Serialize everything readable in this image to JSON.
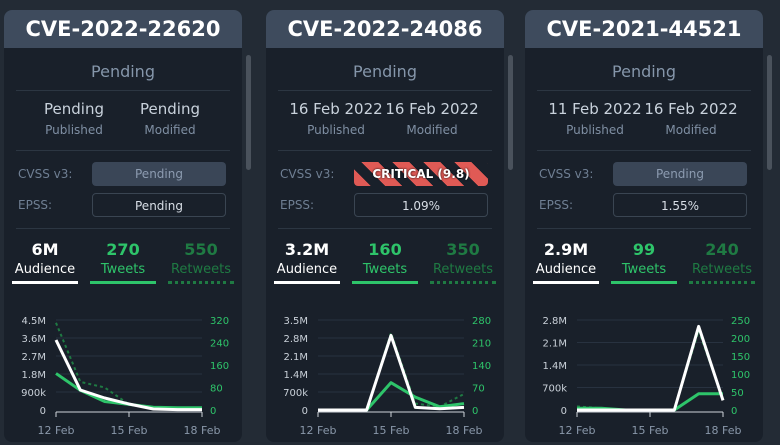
{
  "cards": [
    {
      "title": "CVE-2022-22620",
      "status": "Pending",
      "published": "Pending",
      "modified": "Pending",
      "published_label": "Published",
      "modified_label": "Modified",
      "cvss_label": "CVSS v3:",
      "cvss": "Pending",
      "cvss_severity": "pending",
      "epss_label": "EPSS:",
      "epss": "Pending",
      "audience": "6M",
      "tweets": "270",
      "retweets": "550",
      "audience_label": "Audience",
      "tweets_label": "Tweets",
      "retweets_label": "Retweets"
    },
    {
      "title": "CVE-2022-24086",
      "status": "Pending",
      "published": "16 Feb 2022",
      "modified": "16 Feb 2022",
      "published_label": "Published",
      "modified_label": "Modified",
      "cvss_label": "CVSS v3:",
      "cvss": "CRITICAL (9.8)",
      "cvss_severity": "critical",
      "epss_label": "EPSS:",
      "epss": "1.09%",
      "audience": "3.2M",
      "tweets": "160",
      "retweets": "350",
      "audience_label": "Audience",
      "tweets_label": "Tweets",
      "retweets_label": "Retweets"
    },
    {
      "title": "CVE-2021-44521",
      "status": "Pending",
      "published": "11 Feb 2022",
      "modified": "16 Feb 2022",
      "published_label": "Published",
      "modified_label": "Modified",
      "cvss_label": "CVSS v3:",
      "cvss": "Pending",
      "cvss_severity": "pending",
      "epss_label": "EPSS:",
      "epss": "1.55%",
      "audience": "2.9M",
      "tweets": "99",
      "retweets": "240",
      "audience_label": "Audience",
      "tweets_label": "Tweets",
      "retweets_label": "Retweets"
    }
  ],
  "colors": {
    "audience": "#ffffff",
    "tweets": "#2ec46a",
    "retweets": "#1f7a43"
  },
  "chart_data": [
    {
      "type": "line",
      "x": [
        "12 Feb",
        "13 Feb",
        "14 Feb",
        "15 Feb",
        "16 Feb",
        "17 Feb",
        "18 Feb"
      ],
      "xticks": [
        "12 Feb",
        "15 Feb",
        "18 Feb"
      ],
      "yleft": {
        "max": 4500000,
        "ticks": [
          "0",
          "900k",
          "1.8M",
          "2.7M",
          "3.6M",
          "4.5M"
        ]
      },
      "yright": {
        "max": 320,
        "ticks": [
          "0",
          "80",
          "160",
          "240",
          "320"
        ]
      },
      "series": [
        {
          "name": "Audience",
          "axis": "left",
          "values": [
            3500000,
            1000000,
            600000,
            300000,
            50000,
            20000,
            20000
          ]
        },
        {
          "name": "Tweets",
          "axis": "right",
          "values": [
            130,
            70,
            30,
            20,
            10,
            8,
            8
          ]
        },
        {
          "name": "Retweets",
          "axis": "right",
          "values": [
            310,
            100,
            80,
            20,
            5,
            5,
            5
          ]
        }
      ]
    },
    {
      "type": "line",
      "x": [
        "12 Feb",
        "13 Feb",
        "14 Feb",
        "15 Feb",
        "16 Feb",
        "17 Feb",
        "18 Feb"
      ],
      "xticks": [
        "12 Feb",
        "15 Feb",
        "18 Feb"
      ],
      "yleft": {
        "max": 3500000,
        "ticks": [
          "0",
          "700k",
          "1.4M",
          "2.1M",
          "2.8M",
          "3.5M"
        ]
      },
      "yright": {
        "max": 280,
        "ticks": [
          "0",
          "70",
          "140",
          "210",
          "280"
        ]
      },
      "series": [
        {
          "name": "Audience",
          "axis": "left",
          "values": [
            0,
            0,
            0,
            2900000,
            100000,
            50000,
            100000
          ]
        },
        {
          "name": "Tweets",
          "axis": "right",
          "values": [
            0,
            0,
            0,
            85,
            40,
            10,
            20
          ]
        },
        {
          "name": "Retweets",
          "axis": "right",
          "values": [
            0,
            0,
            0,
            240,
            20,
            10,
            50
          ]
        }
      ]
    },
    {
      "type": "line",
      "x": [
        "12 Feb",
        "13 Feb",
        "14 Feb",
        "15 Feb",
        "16 Feb",
        "17 Feb",
        "18 Feb"
      ],
      "xticks": [
        "12 Feb",
        "15 Feb",
        "18 Feb"
      ],
      "yleft": {
        "max": 2800000,
        "ticks": [
          "0",
          "700k",
          "1.4M",
          "2.1M",
          "2.8M"
        ]
      },
      "yright": {
        "max": 250,
        "ticks": [
          "0",
          "50",
          "100",
          "150",
          "200",
          "250"
        ]
      },
      "series": [
        {
          "name": "Audience",
          "axis": "left",
          "values": [
            0,
            0,
            0,
            0,
            0,
            2600000,
            300000
          ]
        },
        {
          "name": "Tweets",
          "axis": "right",
          "values": [
            5,
            5,
            0,
            0,
            0,
            45,
            45
          ]
        },
        {
          "name": "Retweets",
          "axis": "right",
          "values": [
            10,
            5,
            0,
            0,
            0,
            220,
            30
          ]
        }
      ]
    }
  ]
}
